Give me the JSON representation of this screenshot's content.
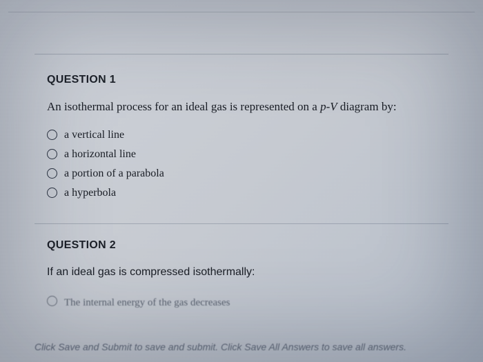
{
  "q1": {
    "title": "QUESTION 1",
    "stem_pre": "An isothermal process for an ideal gas is represented on a ",
    "stem_var": "p-V",
    "stem_post": " diagram by:",
    "options": [
      "a vertical line",
      "a horizontal line",
      "a portion of a parabola",
      "a hyperbola"
    ]
  },
  "q2": {
    "title": "QUESTION 2",
    "stem": "If an ideal gas is compressed isothermally:",
    "cut_option": "The internal energy of the gas decreases"
  },
  "footer": "Click Save and Submit to save and submit. Click Save All Answers to save all answers.",
  "colors": {
    "text": "#1a1e26",
    "muted": "#5a6272",
    "border": "rgba(90,100,120,0.35)"
  }
}
